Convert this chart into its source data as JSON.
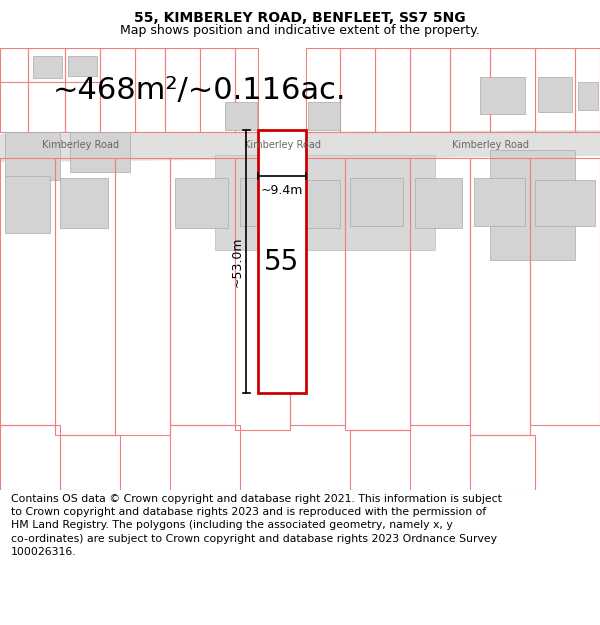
{
  "title_line1": "55, KIMBERLEY ROAD, BENFLEET, SS7 5NG",
  "title_line2": "Map shows position and indicative extent of the property.",
  "area_text": "~468m²/~0.116ac.",
  "height_label": "~53.0m",
  "width_label": "~9.4m",
  "number_label": "55",
  "road_label": "Kimberley Road",
  "footer_text": "Contains OS data © Crown copyright and database right 2021. This information is subject\nto Crown copyright and database rights 2023 and is reproduced with the permission of\nHM Land Registry. The polygons (including the associated geometry, namely x, y\nco-ordinates) are subject to Crown copyright and database rights 2023 Ordnance Survey\n100026316.",
  "bg_color": "#ffffff",
  "property_line_color": "#cc0000",
  "other_line_color": "#f08080",
  "building_fill": "#d3d3d3",
  "road_fill": "#e0e0e0",
  "title_fontsize": 10,
  "subtitle_fontsize": 9,
  "area_fontsize": 22,
  "road_fontsize": 7,
  "dim_fontsize": 9,
  "num_fontsize": 20,
  "footer_fontsize": 7.8
}
